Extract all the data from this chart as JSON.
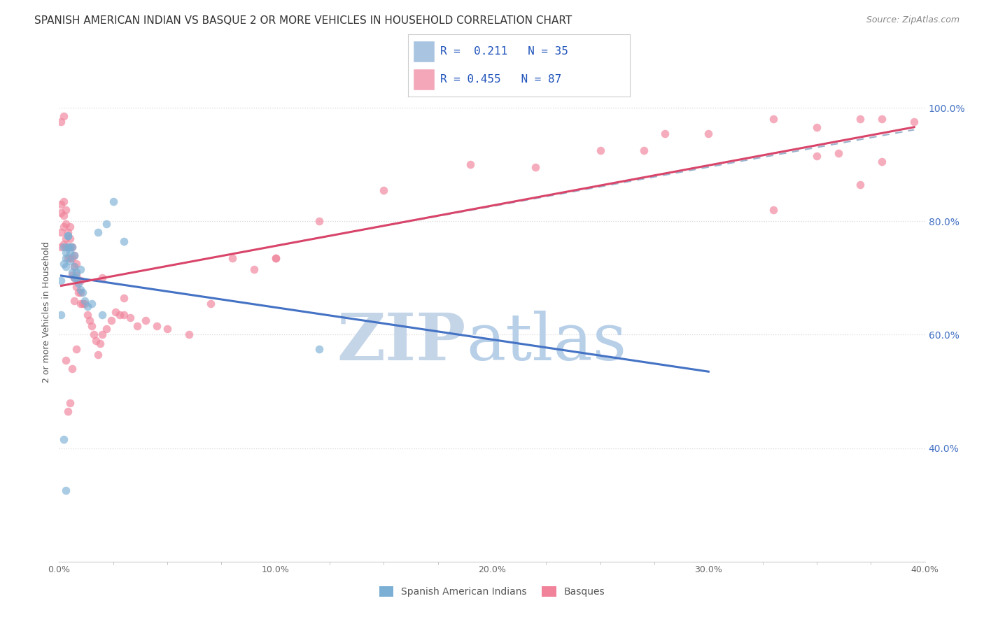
{
  "title": "SPANISH AMERICAN INDIAN VS BASQUE 2 OR MORE VEHICLES IN HOUSEHOLD CORRELATION CHART",
  "source": "Source: ZipAtlas.com",
  "ylabel": "2 or more Vehicles in Household",
  "xlim": [
    0.0,
    0.4
  ],
  "ylim": [
    0.2,
    1.08
  ],
  "xtick_labels": [
    "0.0%",
    "",
    "",
    "",
    "",
    "",
    "",
    "",
    "10.0%",
    "",
    "",
    "",
    "",
    "",
    "",
    "",
    "20.0%",
    "",
    "",
    "",
    "",
    "",
    "",
    "",
    "30.0%",
    "",
    "",
    "",
    "",
    "",
    "",
    "",
    "40.0%"
  ],
  "xtick_vals": [
    0.0,
    0.0125,
    0.025,
    0.0375,
    0.05,
    0.0625,
    0.075,
    0.0875,
    0.1,
    0.1125,
    0.125,
    0.1375,
    0.15,
    0.1625,
    0.175,
    0.1875,
    0.2,
    0.2125,
    0.225,
    0.2375,
    0.25,
    0.2625,
    0.275,
    0.2875,
    0.3,
    0.3125,
    0.325,
    0.3375,
    0.35,
    0.3625,
    0.375,
    0.3875,
    0.4
  ],
  "xtick_major_labels": [
    "0.0%",
    "10.0%",
    "20.0%",
    "30.0%",
    "40.0%"
  ],
  "xtick_major_vals": [
    0.0,
    0.1,
    0.2,
    0.3,
    0.4
  ],
  "ytick_labels": [
    "40.0%",
    "60.0%",
    "80.0%",
    "100.0%"
  ],
  "ytick_vals": [
    0.4,
    0.6,
    0.8,
    1.0
  ],
  "legend1_label": "R =  0.211   N = 35",
  "legend2_label": "R = 0.455   N = 87",
  "legend1_color": "#a8c4e0",
  "legend2_color": "#f4a7b9",
  "scatter_blue_x": [
    0.001,
    0.001,
    0.002,
    0.002,
    0.003,
    0.003,
    0.003,
    0.004,
    0.004,
    0.004,
    0.005,
    0.005,
    0.005,
    0.006,
    0.006,
    0.007,
    0.007,
    0.007,
    0.008,
    0.008,
    0.009,
    0.01,
    0.01,
    0.011,
    0.012,
    0.013,
    0.015,
    0.018,
    0.02,
    0.022,
    0.025,
    0.03,
    0.12,
    0.002,
    0.003
  ],
  "scatter_blue_y": [
    0.635,
    0.695,
    0.725,
    0.755,
    0.72,
    0.735,
    0.745,
    0.775,
    0.775,
    0.755,
    0.73,
    0.745,
    0.755,
    0.71,
    0.755,
    0.7,
    0.72,
    0.74,
    0.7,
    0.71,
    0.69,
    0.68,
    0.715,
    0.675,
    0.66,
    0.65,
    0.655,
    0.78,
    0.635,
    0.795,
    0.835,
    0.765,
    0.575,
    0.415,
    0.325
  ],
  "scatter_pink_x": [
    0.001,
    0.001,
    0.001,
    0.001,
    0.002,
    0.002,
    0.002,
    0.002,
    0.003,
    0.003,
    0.003,
    0.003,
    0.004,
    0.004,
    0.004,
    0.005,
    0.005,
    0.005,
    0.005,
    0.006,
    0.006,
    0.006,
    0.007,
    0.007,
    0.007,
    0.008,
    0.008,
    0.008,
    0.009,
    0.009,
    0.01,
    0.01,
    0.011,
    0.012,
    0.013,
    0.014,
    0.015,
    0.016,
    0.017,
    0.018,
    0.019,
    0.02,
    0.022,
    0.024,
    0.026,
    0.028,
    0.03,
    0.033,
    0.036,
    0.04,
    0.045,
    0.05,
    0.06,
    0.07,
    0.08,
    0.09,
    0.1,
    0.12,
    0.15,
    0.19,
    0.22,
    0.25,
    0.27,
    0.3,
    0.33,
    0.35,
    0.36,
    0.37,
    0.38,
    0.001,
    0.002,
    0.003,
    0.004,
    0.005,
    0.006,
    0.007,
    0.008,
    0.01,
    0.02,
    0.03,
    0.1,
    0.28,
    0.33,
    0.35,
    0.37,
    0.38,
    0.395
  ],
  "scatter_pink_y": [
    0.755,
    0.78,
    0.815,
    0.83,
    0.76,
    0.79,
    0.81,
    0.835,
    0.755,
    0.77,
    0.795,
    0.82,
    0.735,
    0.755,
    0.78,
    0.735,
    0.755,
    0.77,
    0.79,
    0.705,
    0.735,
    0.755,
    0.7,
    0.72,
    0.74,
    0.685,
    0.705,
    0.725,
    0.675,
    0.695,
    0.655,
    0.675,
    0.655,
    0.655,
    0.635,
    0.625,
    0.615,
    0.6,
    0.59,
    0.565,
    0.585,
    0.6,
    0.61,
    0.625,
    0.64,
    0.635,
    0.635,
    0.63,
    0.615,
    0.625,
    0.615,
    0.61,
    0.6,
    0.655,
    0.735,
    0.715,
    0.735,
    0.8,
    0.855,
    0.9,
    0.895,
    0.925,
    0.925,
    0.955,
    0.98,
    0.915,
    0.92,
    0.865,
    0.905,
    0.975,
    0.985,
    0.555,
    0.465,
    0.48,
    0.54,
    0.66,
    0.575,
    0.695,
    0.7,
    0.665,
    0.735,
    0.955,
    0.82,
    0.965,
    0.98,
    0.98,
    0.975
  ],
  "watermark_zip": "ZIP",
  "watermark_atlas": "atlas",
  "watermark_color_zip": "#c5d5e8",
  "watermark_color_atlas": "#b8cfe8",
  "title_fontsize": 11,
  "source_fontsize": 9,
  "axis_label_fontsize": 9,
  "tick_fontsize": 9,
  "blue_line_color": "#4472c4",
  "pink_line_color": "#d9456a",
  "dashed_line_color": "#9ab3cc",
  "scatter_blue_color": "#7bafd4",
  "scatter_pink_color": "#f0829a",
  "grid_color": "#d8d8d8",
  "right_axis_tick_color": "#4472c4",
  "blue_line_start_x": 0.001,
  "blue_line_end_x": 0.3,
  "pink_line_start_x": 0.001,
  "pink_line_end_x": 0.395,
  "dash_line_start_x": 0.1,
  "dash_line_end_x": 0.395
}
